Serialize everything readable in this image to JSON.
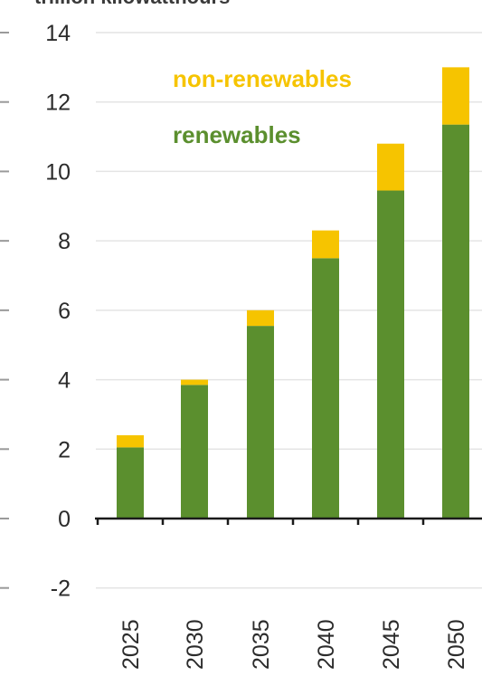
{
  "chart_data": {
    "type": "bar",
    "stacked": true,
    "top_label": "trillion kilowatthours",
    "categories": [
      "2025",
      "2030",
      "2035",
      "2040",
      "2045",
      "2050"
    ],
    "series": [
      {
        "name": "renewables",
        "values": [
          2.05,
          3.85,
          5.55,
          7.5,
          9.45,
          11.35
        ],
        "color": "#5b8f2e"
      },
      {
        "name": "non-renewables",
        "values": [
          0.35,
          0.15,
          0.45,
          0.8,
          1.35,
          1.65
        ],
        "color": "#f6c400"
      }
    ],
    "ylim": [
      -2,
      14
    ],
    "yticks": [
      "-2",
      "0",
      "2",
      "4",
      "6",
      "8",
      "10",
      "12",
      "14"
    ],
    "grid": true,
    "legend_placement": "top-right"
  }
}
